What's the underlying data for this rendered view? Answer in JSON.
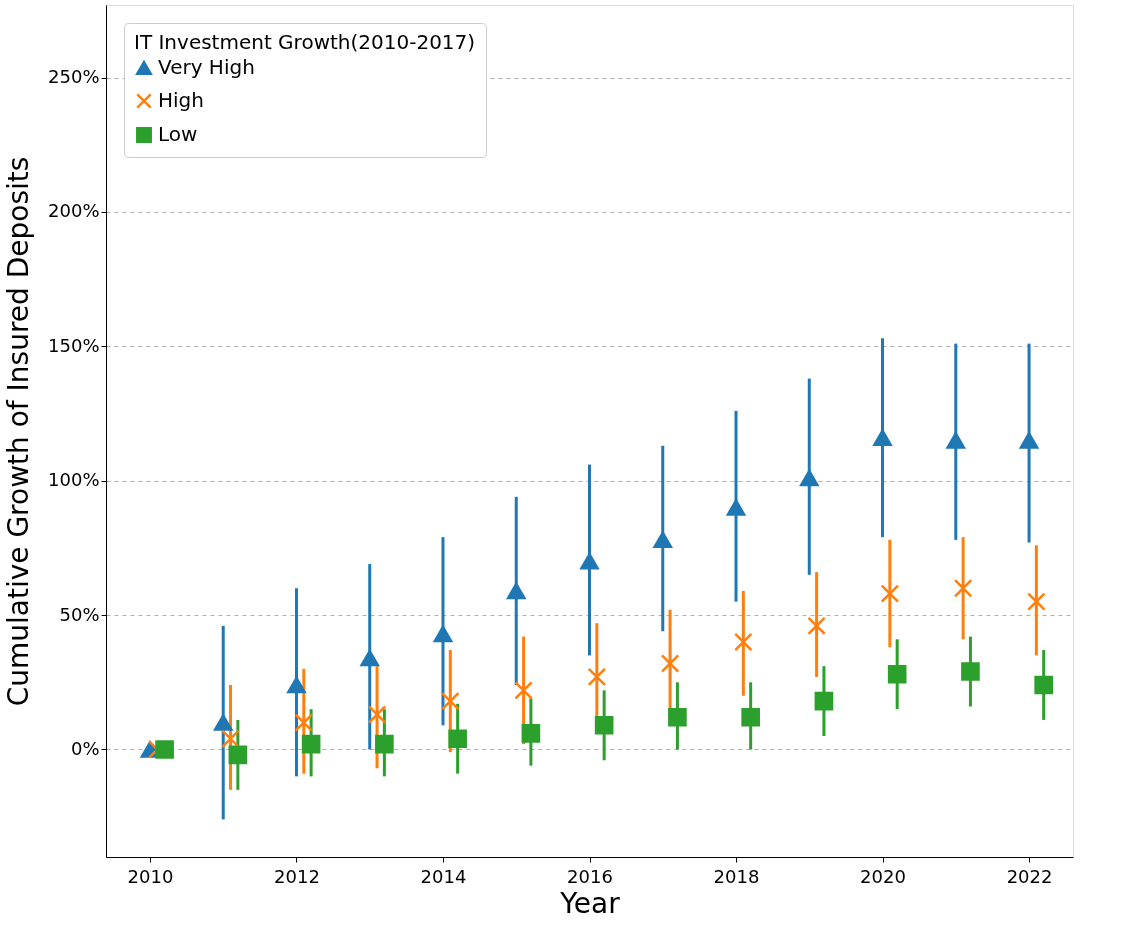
{
  "chart_data": {
    "type": "scatter",
    "xlabel": "Year",
    "ylabel": "Cumulative Growth of Insured Deposits",
    "legend_title": "IT Investment Growth(2010-2017)",
    "legend": "top left",
    "grid": "y",
    "xlim": [
      2009.4,
      2022.6
    ],
    "xticks": [
      2010,
      2012,
      2014,
      2016,
      2018,
      2020,
      2022
    ],
    "ylim": [
      -40,
      277
    ],
    "yticks": [
      {
        "value": 0,
        "label": "0%"
      },
      {
        "value": 50,
        "label": "50%"
      },
      {
        "value": 100,
        "label": "100%"
      },
      {
        "value": 150,
        "label": "150%"
      },
      {
        "value": 200,
        "label": "200%"
      },
      {
        "value": 250,
        "label": "250%"
      }
    ],
    "series": [
      {
        "name": "Very High",
        "color": "#1f77b4",
        "marker": "triangle",
        "x": [
          2010,
          2011,
          2012,
          2013,
          2014,
          2015,
          2016,
          2017,
          2018,
          2019,
          2020,
          2021,
          2022
        ],
        "values": [
          0,
          10,
          24,
          34,
          43,
          59,
          70,
          78,
          90,
          101,
          116,
          115,
          115
        ],
        "errors": [
          null,
          [
            -26,
            46
          ],
          [
            -10,
            60
          ],
          [
            0,
            69
          ],
          [
            9,
            79
          ],
          [
            24,
            94
          ],
          [
            35,
            106
          ],
          [
            44,
            113
          ],
          [
            55,
            126
          ],
          [
            65,
            138
          ],
          [
            79,
            153
          ],
          [
            78,
            151
          ],
          [
            77,
            151
          ]
        ]
      },
      {
        "name": "High",
        "color": "#ff7f0e",
        "marker": "cross",
        "x": [
          2010.1,
          2011.1,
          2012.1,
          2013.1,
          2014.1,
          2015.1,
          2016.1,
          2017.1,
          2018.1,
          2019.1,
          2020.1,
          2021.1,
          2022.1
        ],
        "values": [
          0,
          4,
          10,
          13,
          18,
          22,
          27,
          32,
          40,
          46,
          58,
          60,
          55
        ],
        "errors": [
          null,
          [
            -15,
            24
          ],
          [
            -9,
            30
          ],
          [
            -7,
            31
          ],
          [
            -1,
            37
          ],
          [
            2,
            42
          ],
          [
            7,
            47
          ],
          [
            13,
            52
          ],
          [
            20,
            59
          ],
          [
            27,
            66
          ],
          [
            38,
            78
          ],
          [
            41,
            79
          ],
          [
            35,
            76
          ]
        ]
      },
      {
        "name": "Low",
        "color": "#2ca02c",
        "marker": "square",
        "x": [
          2010.2,
          2011.2,
          2012.2,
          2013.2,
          2014.2,
          2015.2,
          2016.2,
          2017.2,
          2018.2,
          2019.2,
          2020.2,
          2021.2,
          2022.2
        ],
        "values": [
          0,
          -2,
          2,
          2,
          4,
          6,
          9,
          12,
          12,
          18,
          28,
          29,
          24
        ],
        "errors": [
          null,
          [
            -15,
            11
          ],
          [
            -10,
            15
          ],
          [
            -10,
            15
          ],
          [
            -9,
            17
          ],
          [
            -6,
            19
          ],
          [
            -4,
            22
          ],
          [
            0,
            25
          ],
          [
            0,
            25
          ],
          [
            5,
            31
          ],
          [
            15,
            41
          ],
          [
            16,
            42
          ],
          [
            11,
            37
          ]
        ]
      }
    ]
  }
}
